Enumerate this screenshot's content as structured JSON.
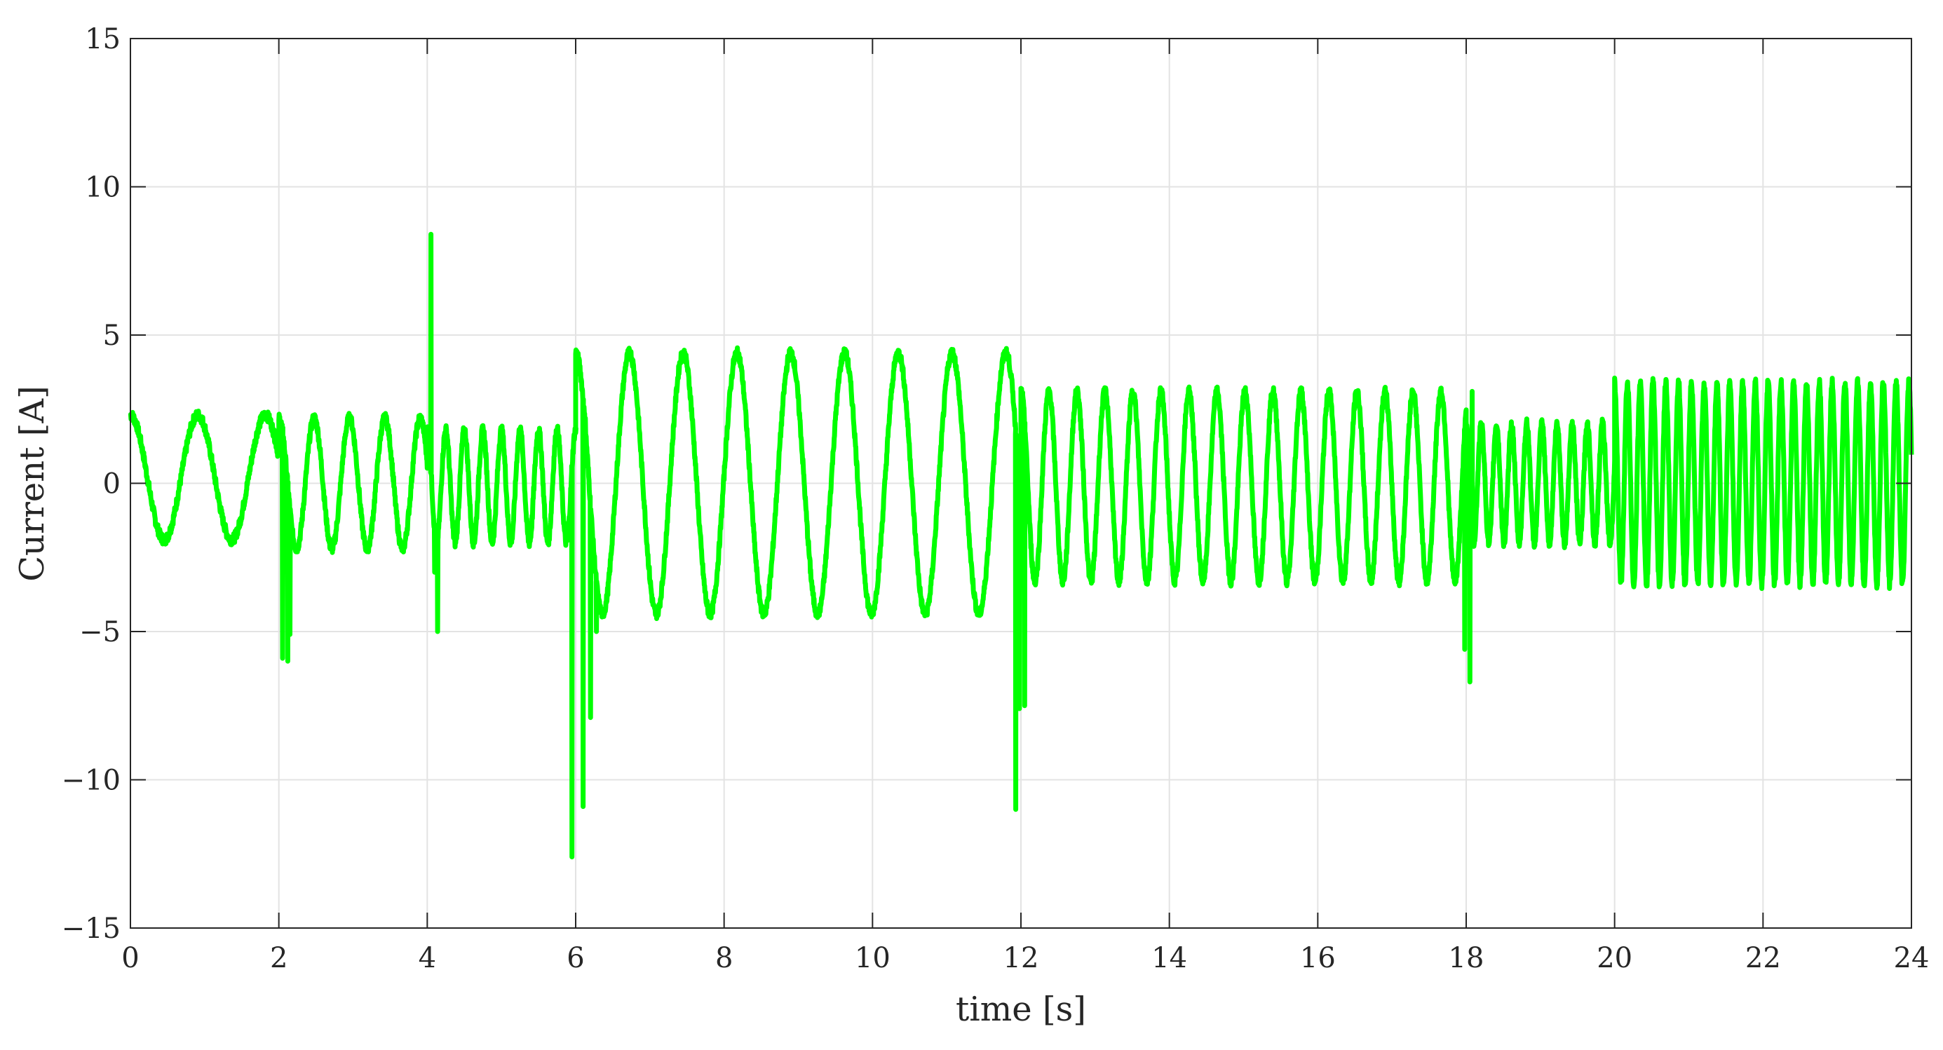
{
  "chart_data": {
    "type": "line",
    "title": "",
    "xlabel": "time [s]",
    "ylabel": "Current [A]",
    "xlim": [
      0,
      24
    ],
    "ylim": [
      -15,
      15
    ],
    "x_ticks": [
      "0",
      "2",
      "4",
      "6",
      "8",
      "10",
      "12",
      "14",
      "16",
      "18",
      "20",
      "22",
      "24"
    ],
    "y_ticks": [
      "15",
      "10",
      "5",
      "0",
      "−5",
      "−10",
      "−15"
    ],
    "x_tick_values": [
      0,
      2,
      4,
      6,
      8,
      10,
      12,
      14,
      16,
      18,
      20,
      22,
      24
    ],
    "y_tick_values": [
      15,
      10,
      5,
      0,
      -5,
      -10,
      -15
    ],
    "grid": true,
    "legend": "none",
    "series": [
      {
        "color": "#00ff00",
        "segments": [
          {
            "t0": 0.0,
            "t1": 2.0,
            "f": 1.1,
            "amp": 2.1,
            "off": 0.2
          },
          {
            "t0": 2.0,
            "t1": 4.0,
            "f": 2.1,
            "amp": 2.2,
            "off": 0.0
          },
          {
            "t0": 4.0,
            "t1": 6.0,
            "f": 4.0,
            "amp": 1.9,
            "off": -0.1
          },
          {
            "t0": 6.0,
            "t1": 12.0,
            "f": 1.38,
            "amp": 4.4,
            "off": 0.0
          },
          {
            "t0": 12.0,
            "t1": 18.0,
            "f": 2.65,
            "amp": 3.2,
            "off": -0.1
          },
          {
            "t0": 18.0,
            "t1": 20.0,
            "f": 4.9,
            "amp": 2.0,
            "off": 0.0
          },
          {
            "t0": 20.0,
            "t1": 24.0,
            "f": 5.8,
            "amp": 3.4,
            "off": 0.0
          }
        ],
        "spikes": [
          {
            "t": 2.05,
            "y": -5.9
          },
          {
            "t": 2.12,
            "y": -6.0
          },
          {
            "t": 2.15,
            "y": -5.1
          },
          {
            "t": 4.05,
            "y": 8.4
          },
          {
            "t": 4.1,
            "y": -3.0
          },
          {
            "t": 4.14,
            "y": -5.0
          },
          {
            "t": 5.95,
            "y": -12.6
          },
          {
            "t": 6.0,
            "y": 1.7
          },
          {
            "t": 6.1,
            "y": -10.9
          },
          {
            "t": 6.13,
            "y": 2.2
          },
          {
            "t": 6.2,
            "y": -7.9
          },
          {
            "t": 6.28,
            "y": -5.0
          },
          {
            "t": 11.93,
            "y": -11.0
          },
          {
            "t": 11.98,
            "y": -7.6
          },
          {
            "t": 12.02,
            "y": 1.8
          },
          {
            "t": 12.05,
            "y": -7.5
          },
          {
            "t": 17.98,
            "y": -5.6
          },
          {
            "t": 18.05,
            "y": -6.7
          },
          {
            "t": 18.08,
            "y": 3.1
          }
        ]
      }
    ]
  }
}
